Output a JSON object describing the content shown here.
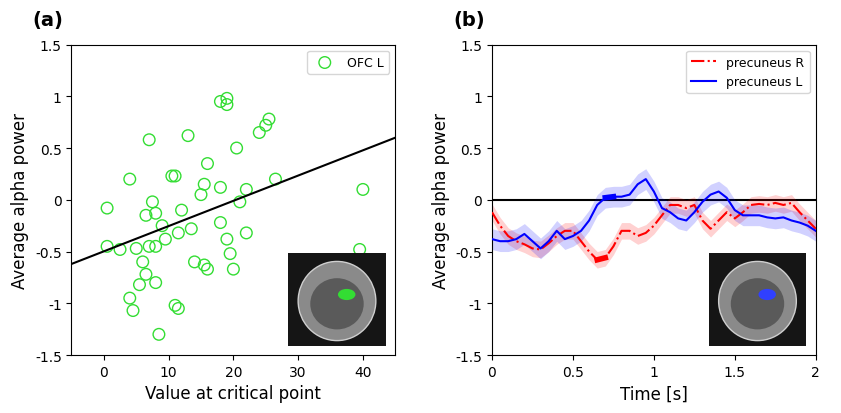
{
  "chart_data": [
    {
      "type": "scatter",
      "title": "(a)",
      "xlabel": "Value at critical point",
      "ylabel": "Average alpha power",
      "xlim": [
        -5,
        45
      ],
      "xticks": [
        0,
        10,
        20,
        30,
        40
      ],
      "ylim": [
        -1.5,
        1.5
      ],
      "yticks": [
        -1.5,
        -1,
        -0.5,
        0,
        0.5,
        1,
        1.5
      ],
      "legend": "upper right",
      "grid": false,
      "series": [
        {
          "name": "OFC L",
          "type": "scatter",
          "color": "#33dd33",
          "marker": "circle",
          "x": [
            0.5,
            0.5,
            2.5,
            4,
            4,
            4.5,
            5,
            5.5,
            6,
            6.5,
            6.5,
            7,
            7,
            7.5,
            8,
            8,
            8.5,
            8,
            9,
            9.5,
            10.5,
            11,
            11,
            11.5,
            11.5,
            12,
            13,
            13.5,
            14,
            15,
            15.5,
            15.5,
            16,
            16,
            18,
            18,
            18,
            19,
            19,
            19,
            19.5,
            20,
            20.5,
            21,
            22,
            22,
            24,
            25,
            25.5,
            26.5,
            39.5,
            40
          ],
          "values": [
            -0.08,
            -0.45,
            -0.48,
            0.2,
            -0.95,
            -1.07,
            -0.47,
            -0.82,
            -0.6,
            -0.72,
            -0.15,
            0.58,
            -0.45,
            -0.02,
            -0.8,
            -0.45,
            -1.3,
            -0.13,
            -0.25,
            -0.38,
            0.23,
            0.23,
            -1.02,
            -1.05,
            -0.32,
            -0.1,
            0.62,
            -0.28,
            -0.6,
            0.05,
            0.15,
            -0.63,
            0.35,
            -0.67,
            0.12,
            -0.22,
            0.95,
            0.98,
            0.92,
            -0.38,
            -0.52,
            -0.67,
            0.5,
            -0.02,
            -0.32,
            0.1,
            0.65,
            0.72,
            0.78,
            0.2,
            -0.48,
            0.1
          ]
        },
        {
          "type": "line",
          "color": "#000000",
          "line_style": "solid",
          "x": [
            -5,
            45
          ],
          "values": [
            -0.62,
            0.6
          ]
        }
      ]
    },
    {
      "type": "line",
      "title": "(b)",
      "xlabel": "Time [s]",
      "ylabel": "Average alpha power",
      "xlim": [
        0,
        2
      ],
      "xticks": [
        0,
        0.5,
        1,
        1.5,
        2
      ],
      "ylim": [
        -1.5,
        1.5
      ],
      "yticks": [
        -1.5,
        -1,
        -0.5,
        0,
        0.5,
        1,
        1.5
      ],
      "legend": "upper right",
      "grid": false,
      "reference_line": 0,
      "x": [
        0,
        0.05,
        0.1,
        0.15,
        0.2,
        0.25,
        0.3,
        0.35,
        0.4,
        0.45,
        0.5,
        0.55,
        0.6,
        0.65,
        0.7,
        0.75,
        0.8,
        0.85,
        0.9,
        0.95,
        1.0,
        1.05,
        1.1,
        1.15,
        1.2,
        1.25,
        1.3,
        1.35,
        1.4,
        1.45,
        1.5,
        1.55,
        1.6,
        1.65,
        1.7,
        1.75,
        1.8,
        1.85,
        1.9,
        1.95,
        2.0
      ],
      "series": [
        {
          "name": "precuneus R",
          "color": "#ff0000",
          "line_style": "dashdot",
          "significant": [
            0.62,
            0.72
          ],
          "values": [
            -0.12,
            -0.25,
            -0.35,
            -0.4,
            -0.43,
            -0.47,
            -0.48,
            -0.42,
            -0.35,
            -0.3,
            -0.3,
            -0.4,
            -0.5,
            -0.58,
            -0.56,
            -0.45,
            -0.3,
            -0.3,
            -0.35,
            -0.32,
            -0.25,
            -0.15,
            -0.05,
            -0.05,
            -0.08,
            -0.05,
            -0.2,
            -0.28,
            -0.2,
            -0.12,
            -0.18,
            -0.12,
            -0.05,
            -0.04,
            -0.05,
            -0.03,
            -0.05,
            -0.03,
            -0.12,
            -0.2,
            -0.28
          ],
          "error": [
            0.08,
            0.08,
            0.08,
            0.08,
            0.08,
            0.08,
            0.08,
            0.08,
            0.08,
            0.08,
            0.08,
            0.08,
            0.08,
            0.08,
            0.08,
            0.08,
            0.08,
            0.08,
            0.08,
            0.08,
            0.08,
            0.08,
            0.08,
            0.08,
            0.08,
            0.08,
            0.08,
            0.08,
            0.08,
            0.08,
            0.08,
            0.08,
            0.08,
            0.08,
            0.08,
            0.08,
            0.08,
            0.08,
            0.08,
            0.08,
            0.08
          ]
        },
        {
          "name": "precuneus L",
          "color": "#0000ff",
          "line_style": "solid",
          "significant": [
            0.68,
            0.77
          ],
          "values": [
            -0.38,
            -0.4,
            -0.4,
            -0.38,
            -0.33,
            -0.4,
            -0.47,
            -0.4,
            -0.3,
            -0.38,
            -0.35,
            -0.3,
            -0.2,
            -0.05,
            0.02,
            0.03,
            0.03,
            0.05,
            0.15,
            0.2,
            0.08,
            -0.08,
            -0.12,
            -0.18,
            -0.2,
            -0.12,
            -0.02,
            0.05,
            0.08,
            0.02,
            -0.1,
            -0.15,
            -0.15,
            -0.15,
            -0.17,
            -0.18,
            -0.17,
            -0.2,
            -0.22,
            -0.25,
            -0.3
          ],
          "error": [
            0.1,
            0.1,
            0.1,
            0.1,
            0.1,
            0.1,
            0.1,
            0.1,
            0.1,
            0.1,
            0.1,
            0.1,
            0.1,
            0.1,
            0.1,
            0.1,
            0.1,
            0.1,
            0.1,
            0.1,
            0.1,
            0.1,
            0.1,
            0.1,
            0.1,
            0.1,
            0.1,
            0.1,
            0.1,
            0.1,
            0.1,
            0.1,
            0.1,
            0.1,
            0.1,
            0.1,
            0.1,
            0.1,
            0.1,
            0.1,
            0.1
          ]
        }
      ]
    }
  ]
}
